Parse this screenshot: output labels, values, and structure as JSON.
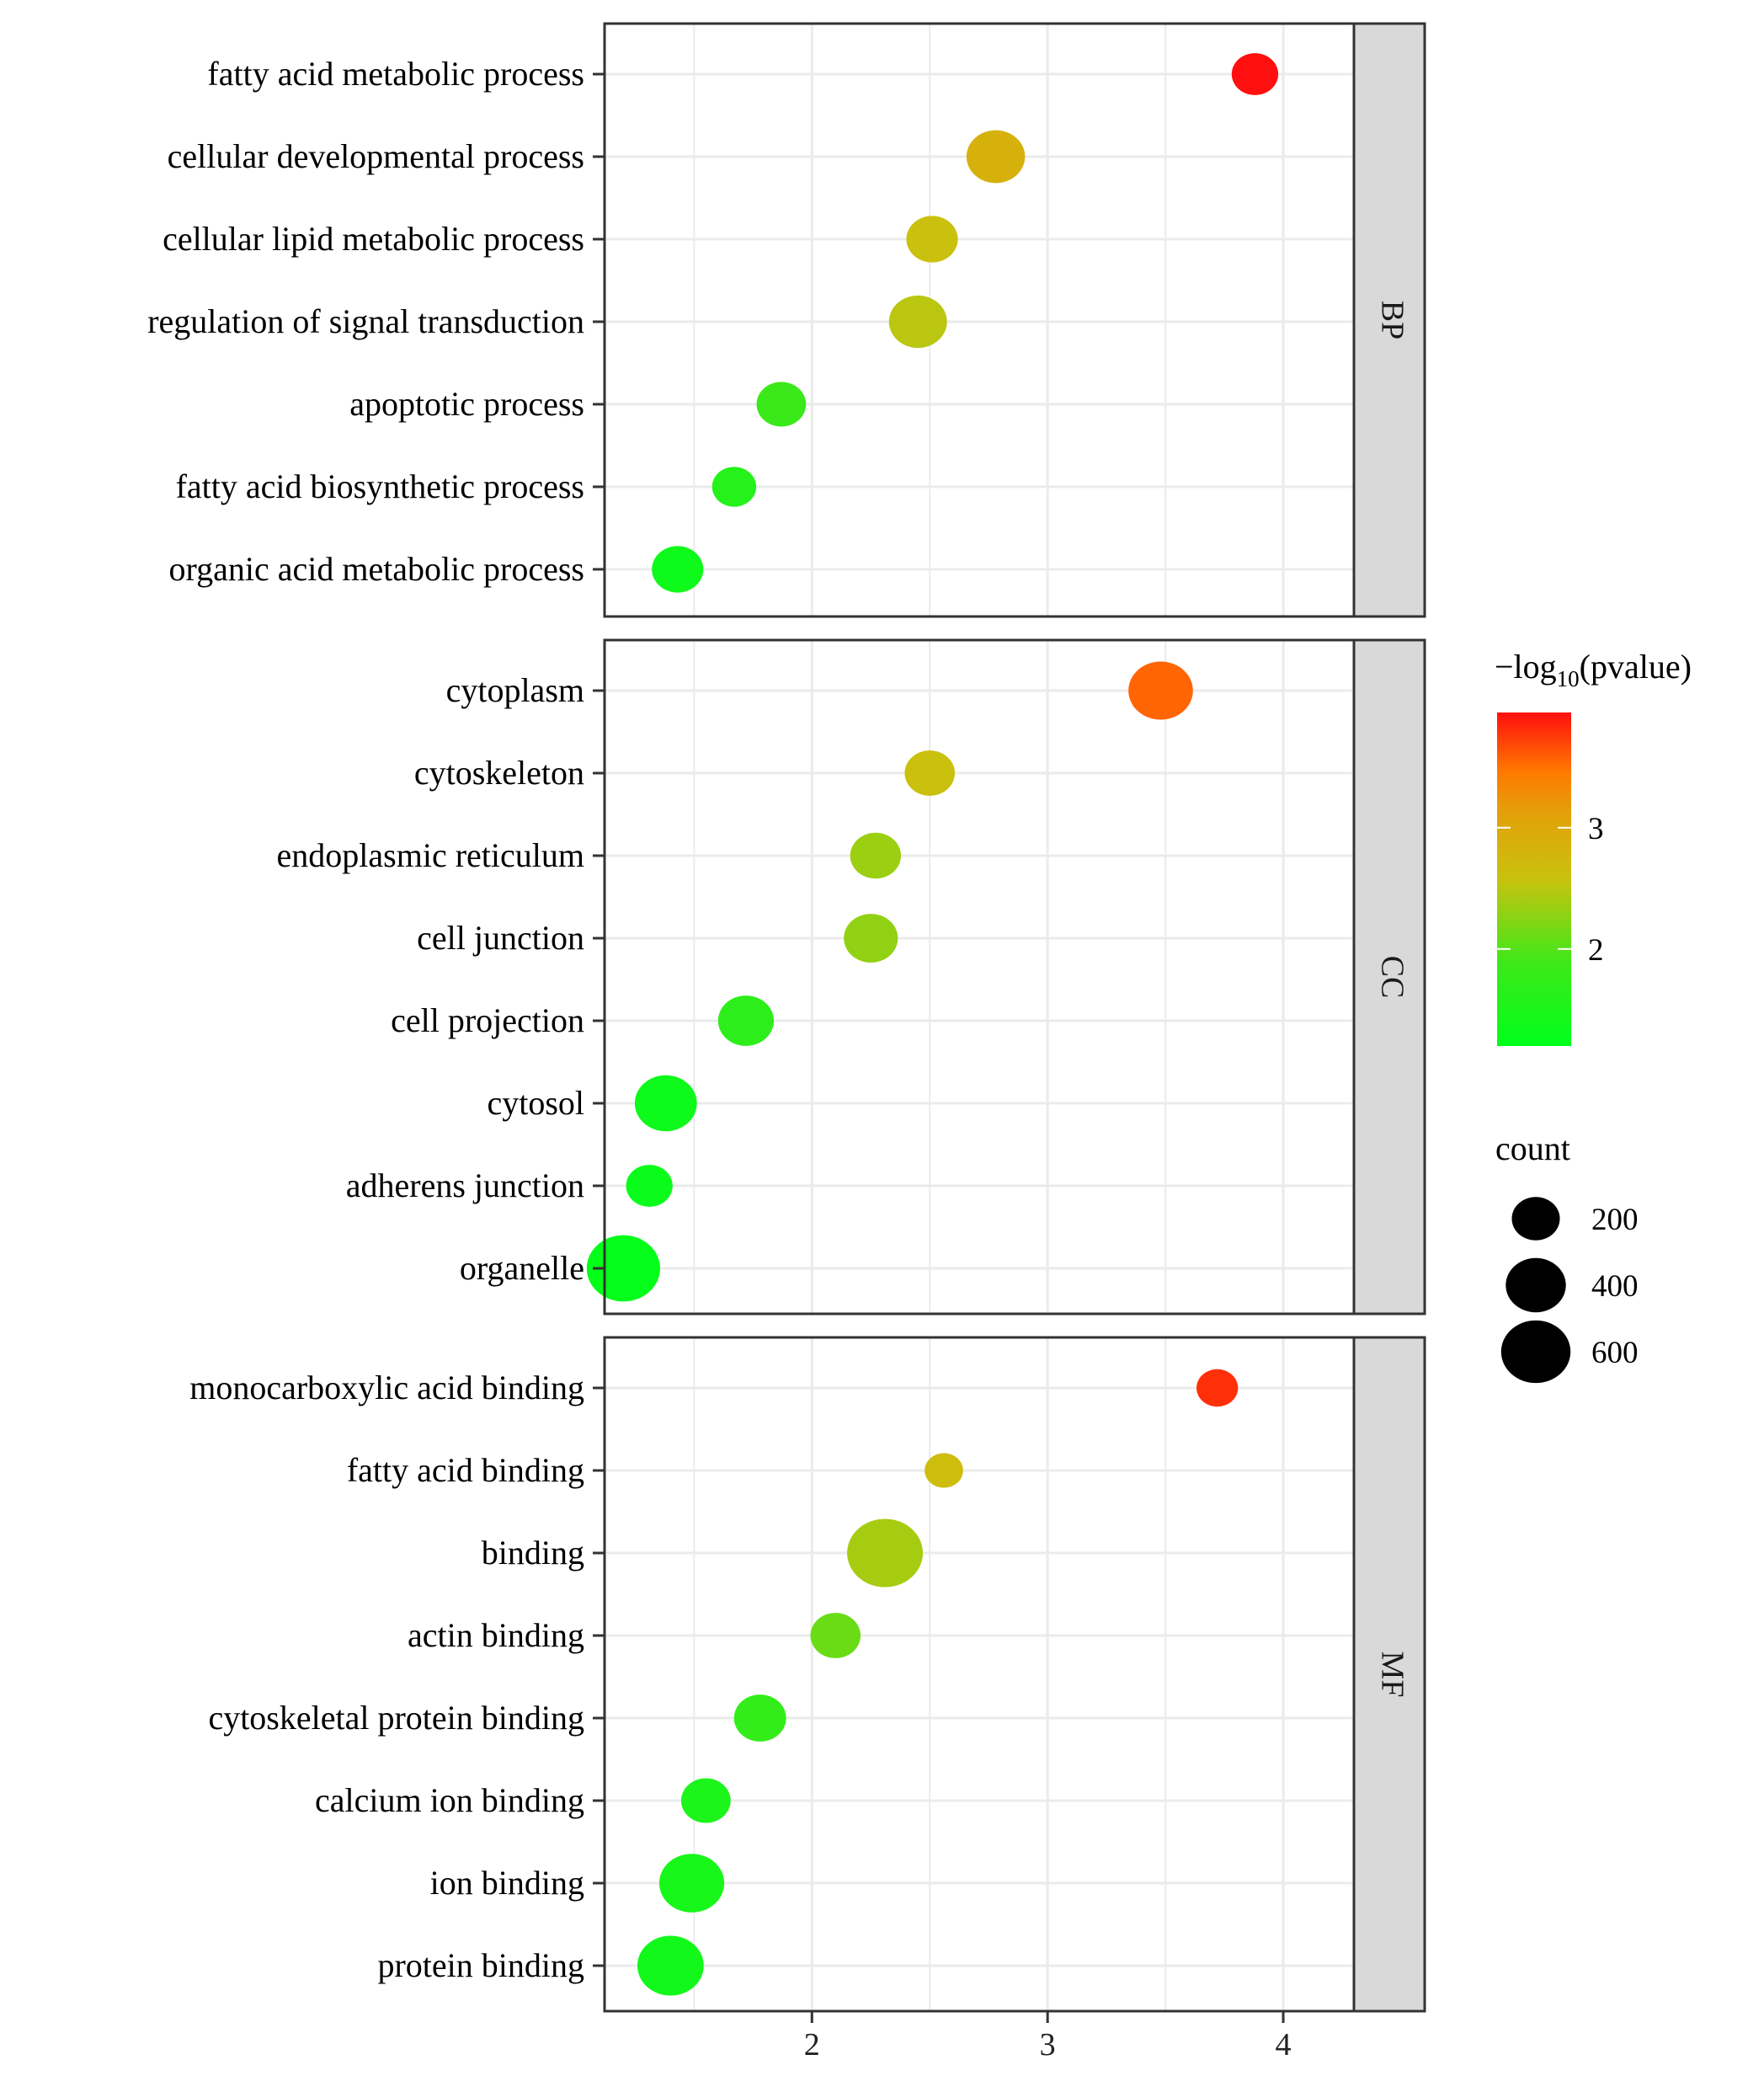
{
  "chart_data": {
    "type": "scatter",
    "x_ticks": [
      "2",
      "3",
      "4"
    ],
    "x_tick_values": [
      2,
      3,
      4
    ],
    "xlim": [
      1.12,
      4.3
    ],
    "facets": [
      {
        "name": "BP",
        "terms": [
          {
            "label": "fatty acid metabolic process",
            "x": 3.88,
            "neglog10p": 3.95,
            "count": 180
          },
          {
            "label": "cellular developmental process",
            "x": 2.78,
            "neglog10p": 2.85,
            "count": 370
          },
          {
            "label": "cellular lipid metabolic process",
            "x": 2.51,
            "neglog10p": 2.6,
            "count": 250
          },
          {
            "label": "regulation of signal transduction",
            "x": 2.45,
            "neglog10p": 2.5,
            "count": 360
          },
          {
            "label": "apoptotic process",
            "x": 1.87,
            "neglog10p": 1.85,
            "count": 220
          },
          {
            "label": "fatty acid biosynthetic process",
            "x": 1.67,
            "neglog10p": 1.6,
            "count": 150
          },
          {
            "label": "organic acid metabolic process",
            "x": 1.43,
            "neglog10p": 1.35,
            "count": 250
          }
        ]
      },
      {
        "name": "CC",
        "terms": [
          {
            "label": "cytoplasm",
            "x": 3.48,
            "neglog10p": 3.55,
            "count": 490
          },
          {
            "label": "cytoskeleton",
            "x": 2.5,
            "neglog10p": 2.6,
            "count": 230
          },
          {
            "label": "endoplasmic reticulum",
            "x": 2.27,
            "neglog10p": 2.35,
            "count": 240
          },
          {
            "label": "cell junction",
            "x": 2.25,
            "neglog10p": 2.3,
            "count": 290
          },
          {
            "label": "cell projection",
            "x": 1.72,
            "neglog10p": 1.7,
            "count": 320
          },
          {
            "label": "cytosol",
            "x": 1.38,
            "neglog10p": 1.35,
            "count": 440
          },
          {
            "label": "adherens junction",
            "x": 1.31,
            "neglog10p": 1.3,
            "count": 180
          },
          {
            "label": "organelle",
            "x": 1.2,
            "neglog10p": 1.25,
            "count": 700
          }
        ]
      },
      {
        "name": "MF",
        "terms": [
          {
            "label": "monocarboxylic acid binding",
            "x": 3.72,
            "neglog10p": 3.8,
            "count": 120
          },
          {
            "label": "fatty acid binding",
            "x": 2.56,
            "neglog10p": 2.65,
            "count": 90
          },
          {
            "label": "binding",
            "x": 2.31,
            "neglog10p": 2.4,
            "count": 760
          },
          {
            "label": "actin binding",
            "x": 2.1,
            "neglog10p": 2.1,
            "count": 230
          },
          {
            "label": "cytoskeletal protein binding",
            "x": 1.78,
            "neglog10p": 1.75,
            "count": 260
          },
          {
            "label": "calcium ion binding",
            "x": 1.55,
            "neglog10p": 1.5,
            "count": 220
          },
          {
            "label": "ion binding",
            "x": 1.49,
            "neglog10p": 1.45,
            "count": 500
          },
          {
            "label": "protein binding",
            "x": 1.4,
            "neglog10p": 1.4,
            "count": 530
          }
        ]
      }
    ],
    "color_legend": {
      "title_prefix": "−log",
      "title_sub": "10",
      "title_suffix": "(pvalue)",
      "min": 1.2,
      "max": 3.95,
      "ticks": [
        {
          "value": 3,
          "label": "3"
        },
        {
          "value": 2,
          "label": "2"
        }
      ],
      "low_color": "#00ff1a",
      "mid_color": "#d2a50a",
      "mid2_color": "#ff7a00",
      "high_color": "#ff0f0f"
    },
    "size_legend": {
      "title": "count",
      "entries": [
        {
          "value": 200,
          "label": "200"
        },
        {
          "value": 400,
          "label": "400"
        },
        {
          "value": 600,
          "label": "600"
        }
      ]
    }
  }
}
